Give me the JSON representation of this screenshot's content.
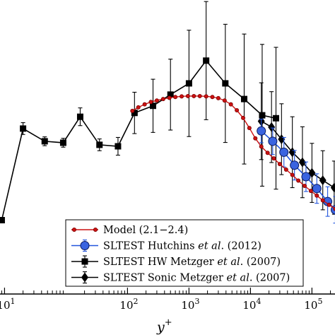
{
  "chart_data": {
    "type": "line",
    "title": "",
    "xlabel": "y",
    "xlabel_sup": "+",
    "ylabel": "",
    "xscale": "log",
    "xlim": [
      0.8,
      250000
    ],
    "ylim": [
      0,
      1
    ],
    "x_ticks": [
      {
        "value": 1,
        "base": "10",
        "exp": "1"
      },
      {
        "value": 100,
        "base": "10",
        "exp": "2"
      },
      {
        "value": 1000,
        "base": "10",
        "exp": "3"
      },
      {
        "value": 10000,
        "base": "10",
        "exp": "4"
      },
      {
        "value": 100000,
        "base": "10",
        "exp": "5"
      }
    ],
    "legend_position": "bottom-right",
    "grid": false,
    "series": [
      {
        "name": "Model (2.1–2.4)",
        "label_parts": [
          "Model (2.1−2.4)"
        ],
        "style": "model",
        "color": "#cc1111",
        "marker": "small-circle",
        "points": [
          {
            "x": 120,
            "y": 0.62
          },
          {
            "x": 150,
            "y": 0.632
          },
          {
            "x": 190,
            "y": 0.642
          },
          {
            "x": 240,
            "y": 0.65
          },
          {
            "x": 300,
            "y": 0.655
          },
          {
            "x": 380,
            "y": 0.66
          },
          {
            "x": 480,
            "y": 0.664
          },
          {
            "x": 600,
            "y": 0.667
          },
          {
            "x": 760,
            "y": 0.669
          },
          {
            "x": 960,
            "y": 0.67
          },
          {
            "x": 1200,
            "y": 0.67
          },
          {
            "x": 1500,
            "y": 0.67
          },
          {
            "x": 1900,
            "y": 0.669
          },
          {
            "x": 2400,
            "y": 0.667
          },
          {
            "x": 3000,
            "y": 0.663
          },
          {
            "x": 3800,
            "y": 0.655
          },
          {
            "x": 4800,
            "y": 0.642
          },
          {
            "x": 6000,
            "y": 0.622
          },
          {
            "x": 7600,
            "y": 0.596
          },
          {
            "x": 9600,
            "y": 0.562
          },
          {
            "x": 12000,
            "y": 0.527
          },
          {
            "x": 15000,
            "y": 0.499
          },
          {
            "x": 19000,
            "y": 0.478
          },
          {
            "x": 24000,
            "y": 0.459
          },
          {
            "x": 30000,
            "y": 0.44
          },
          {
            "x": 38000,
            "y": 0.421
          },
          {
            "x": 48000,
            "y": 0.403
          },
          {
            "x": 60000,
            "y": 0.384
          },
          {
            "x": 76000,
            "y": 0.366
          },
          {
            "x": 96000,
            "y": 0.349
          },
          {
            "x": 120000,
            "y": 0.333
          },
          {
            "x": 150000,
            "y": 0.317
          },
          {
            "x": 190000,
            "y": 0.302
          },
          {
            "x": 240000,
            "y": 0.288
          }
        ]
      },
      {
        "name": "SLTEST Hutchins et al. (2012)",
        "label_parts": [
          "SLTEST Hutchins ",
          "et al",
          ". (2012)"
        ],
        "style": "hutchins",
        "color": "#2255dd",
        "marker": "circle",
        "points": [
          {
            "x": 15000,
            "y": 0.552,
            "err": 0.04
          },
          {
            "x": 23000,
            "y": 0.517,
            "err": 0.045
          },
          {
            "x": 35000,
            "y": 0.48,
            "err": 0.05
          },
          {
            "x": 52000,
            "y": 0.436,
            "err": 0.05
          },
          {
            "x": 80000,
            "y": 0.397,
            "err": 0.05
          },
          {
            "x": 120000,
            "y": 0.357,
            "err": 0.05
          },
          {
            "x": 180000,
            "y": 0.313,
            "err": 0.05
          },
          {
            "x": 240000,
            "y": 0.285,
            "err": 0.045
          }
        ]
      },
      {
        "name": "SLTEST HW Metzger et al. (2007)",
        "label_parts": [
          "SLTEST HW Metzger ",
          "et al",
          ". (2007)"
        ],
        "style": "hw",
        "color": "#000000",
        "marker": "square",
        "points": [
          {
            "x": 0.9,
            "y": 0.25,
            "err": 0.0
          },
          {
            "x": 2,
            "y": 0.56,
            "err": 0.02
          },
          {
            "x": 4.5,
            "y": 0.517,
            "err": 0.015
          },
          {
            "x": 9,
            "y": 0.512,
            "err": 0.015
          },
          {
            "x": 17,
            "y": 0.6,
            "err": 0.03
          },
          {
            "x": 35,
            "y": 0.505,
            "err": 0.02
          },
          {
            "x": 70,
            "y": 0.5,
            "err": 0.03
          },
          {
            "x": 130,
            "y": 0.613,
            "err": 0.07
          },
          {
            "x": 260,
            "y": 0.637,
            "err": 0.09
          },
          {
            "x": 500,
            "y": 0.675,
            "err": 0.12
          },
          {
            "x": 1000,
            "y": 0.713,
            "err": 0.18
          },
          {
            "x": 1900,
            "y": 0.79,
            "err": 0.2
          },
          {
            "x": 3900,
            "y": 0.713,
            "err": 0.2
          },
          {
            "x": 7900,
            "y": 0.66,
            "err": 0.22
          },
          {
            "x": 15500,
            "y": 0.605,
            "err": 0.24
          },
          {
            "x": 26000,
            "y": 0.595,
            "err": 0.24
          }
        ]
      },
      {
        "name": "SLTEST Sonic Metzger et al. (2007)",
        "label_parts": [
          "SLTEST Sonic Metzger ",
          "et al",
          ". (2007)"
        ],
        "style": "sonic",
        "color": "#000000",
        "marker": "diamond",
        "points": [
          {
            "x": 15000,
            "y": 0.585,
            "err": 0.13
          },
          {
            "x": 22000,
            "y": 0.565,
            "err": 0.12
          },
          {
            "x": 32000,
            "y": 0.524,
            "err": 0.12
          },
          {
            "x": 48000,
            "y": 0.48,
            "err": 0.12
          },
          {
            "x": 70000,
            "y": 0.446,
            "err": 0.12
          },
          {
            "x": 100000,
            "y": 0.41,
            "err": 0.1
          },
          {
            "x": 150000,
            "y": 0.385,
            "err": 0.1
          },
          {
            "x": 230000,
            "y": 0.36,
            "err": 0.09
          }
        ]
      }
    ]
  }
}
